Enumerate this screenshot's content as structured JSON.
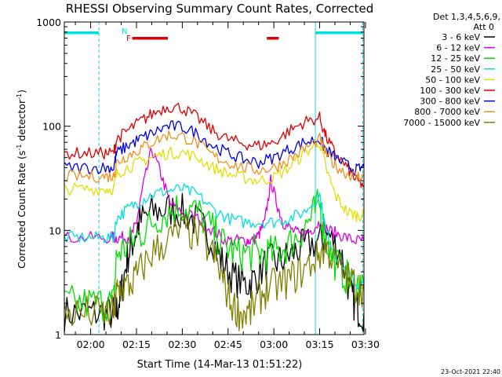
{
  "chart_data": {
    "type": "line",
    "title": "RHESSI Observing Summary Count Rates, Corrected",
    "xlabel": "Start Time (14-Mar-13 01:51:22)",
    "ylabel_main": "Corrected Count Rate (s",
    "ylabel_sup1": "-1",
    "ylabel_mid": " detector",
    "ylabel_sup2": "-1",
    "ylabel_end": ")",
    "yscale": "log",
    "ylim": [
      1,
      1000
    ],
    "xlim_min": [
      111.37,
      209.5
    ],
    "x_unit": "minutes after 00:00 UT, 14-Mar-13",
    "x_ticks": [
      {
        "v": 120,
        "label": "02:00"
      },
      {
        "v": 135,
        "label": "02:15"
      },
      {
        "v": 150,
        "label": "02:30"
      },
      {
        "v": 165,
        "label": "02:45"
      },
      {
        "v": 180,
        "label": "03:00"
      },
      {
        "v": 195,
        "label": "03:15"
      },
      {
        "v": 210,
        "label": "03:30"
      }
    ],
    "y_ticks": [
      {
        "v": 1,
        "label": "1"
      },
      {
        "v": 10,
        "label": "10"
      },
      {
        "v": 100,
        "label": "100"
      },
      {
        "v": 1000,
        "label": "1000"
      }
    ],
    "legend_header": [
      "Det 1,3,4,5,6,9,",
      "Att 0"
    ],
    "legend_placement": "right",
    "series": [
      {
        "name": "3 - 6 keV",
        "color": "#000000",
        "x": [
          111.4,
          118,
          124,
          127.5,
          128.5,
          130,
          132,
          134,
          136,
          140,
          145,
          150,
          155,
          160,
          163,
          167,
          171,
          174,
          178,
          182,
          186,
          190,
          195,
          198,
          202,
          205,
          207,
          209.5
        ],
        "y": [
          1.6,
          1.6,
          1.6,
          1.6,
          1.7,
          2.5,
          5.5,
          8,
          12,
          15,
          16,
          15,
          12,
          8,
          5,
          3.5,
          3,
          3.5,
          5,
          5,
          6,
          7,
          8,
          9,
          6,
          2.5,
          1.8,
          1.6
        ]
      },
      {
        "name": "6 - 12 keV",
        "color": "#e000e0",
        "x": [
          111.4,
          120,
          127,
          128.5,
          131,
          133.5,
          135,
          137,
          140,
          143,
          146,
          150,
          155,
          160,
          164,
          168,
          171,
          173,
          175,
          177,
          179,
          181,
          183,
          186,
          189,
          192,
          195,
          198,
          202,
          206,
          209.5
        ],
        "y": [
          8.5,
          8.5,
          8.5,
          8.5,
          8.5,
          9,
          12,
          25,
          60,
          35,
          18,
          15,
          13,
          10,
          8,
          8,
          8,
          8,
          9,
          12,
          30,
          18,
          12,
          10,
          9,
          10,
          12,
          10,
          9,
          8,
          8
        ]
      },
      {
        "name": "12 - 25 keV",
        "color": "#00e000",
        "x": [
          111.4,
          118,
          124,
          127.5,
          128.5,
          132,
          136,
          140,
          145,
          150,
          155,
          160,
          164,
          168,
          172,
          176,
          180,
          184,
          188,
          192,
          195,
          197,
          200,
          204,
          207,
          209.5
        ],
        "y": [
          2,
          2,
          2,
          2,
          6,
          7,
          9,
          12,
          15,
          17,
          15,
          10,
          7,
          6,
          6,
          6,
          6,
          7,
          9,
          13,
          18,
          8,
          5,
          3.5,
          3,
          3
        ]
      },
      {
        "name": "25 - 50 keV",
        "color": "#00e0e0",
        "x": [
          111.4,
          118,
          124,
          127.5,
          128.5,
          132,
          136,
          140,
          145,
          150,
          155,
          160,
          165,
          170,
          175,
          180,
          185,
          190,
          195,
          197,
          200,
          204,
          207,
          209.5
        ],
        "y": [
          8.5,
          8.5,
          8.5,
          8.5,
          13,
          16,
          19,
          22,
          24,
          25,
          22,
          16,
          13,
          12,
          12,
          12,
          13,
          15,
          22,
          10,
          6,
          4,
          3,
          3
        ]
      },
      {
        "name": "50 - 100 keV",
        "color": "#e0e000",
        "x": [
          111.4,
          118,
          124,
          127.5,
          128.5,
          132,
          136,
          140,
          145,
          150,
          155,
          160,
          165,
          170,
          175,
          180,
          185,
          190,
          195,
          197,
          200,
          204,
          207,
          209.5
        ],
        "y": [
          25,
          25,
          25,
          25,
          35,
          40,
          45,
          50,
          55,
          56,
          50,
          40,
          35,
          32,
          30,
          32,
          40,
          55,
          70,
          40,
          22,
          15,
          14,
          14
        ]
      },
      {
        "name": "100 - 300 keV",
        "color": "#e00000",
        "x": [
          111.4,
          118,
          124,
          127.5,
          128.5,
          132,
          136,
          140,
          145,
          150,
          155,
          160,
          165,
          170,
          175,
          180,
          185,
          190,
          195,
          197,
          200,
          204,
          207,
          209.5
        ],
        "y": [
          55,
          55,
          55,
          55,
          75,
          90,
          110,
          130,
          155,
          150,
          120,
          90,
          75,
          68,
          65,
          70,
          90,
          110,
          120,
          80,
          55,
          40,
          30,
          27
        ]
      },
      {
        "name": "300 - 800 keV",
        "color": "#0000e0",
        "x": [
          111.4,
          118,
          124,
          127.5,
          128.5,
          132,
          136,
          140,
          145,
          150,
          155,
          160,
          165,
          170,
          175,
          180,
          185,
          190,
          195,
          197,
          200,
          204,
          207,
          209.5
        ],
        "y": [
          40,
          40,
          40,
          40,
          55,
          65,
          75,
          85,
          100,
          98,
          85,
          65,
          55,
          48,
          45,
          50,
          60,
          70,
          75,
          60,
          50,
          42,
          38,
          40
        ]
      },
      {
        "name": "800 - 7000 keV",
        "color": "#f09020",
        "x": [
          111.4,
          118,
          124,
          127.5,
          128.5,
          132,
          136,
          140,
          145,
          150,
          155,
          160,
          165,
          170,
          175,
          180,
          185,
          190,
          195,
          197,
          200,
          204,
          207,
          209.5
        ],
        "y": [
          33,
          33,
          33,
          33,
          45,
          52,
          60,
          70,
          82,
          80,
          68,
          52,
          45,
          40,
          38,
          40,
          48,
          60,
          75,
          55,
          42,
          35,
          33,
          33
        ]
      },
      {
        "name": "7000 - 15000 keV",
        "color": "#808000",
        "x": [
          111.4,
          118,
          124,
          127.5,
          128.5,
          130,
          133,
          136,
          140,
          145,
          150,
          155,
          160,
          163,
          166,
          169,
          172,
          175,
          178,
          182,
          186,
          190,
          194,
          197,
          200,
          204,
          207,
          209.5
        ],
        "y": [
          1.6,
          1.6,
          1.6,
          1.6,
          2.5,
          2.8,
          3,
          4,
          6,
          8,
          10,
          9,
          6,
          3.5,
          2,
          1.6,
          1.6,
          2.2,
          2.8,
          3,
          3.5,
          4.2,
          5.5,
          7,
          5,
          3.5,
          3,
          2.7
        ]
      }
    ],
    "markers": [
      {
        "name": "N",
        "color": "#00e0e0"
      },
      {
        "name": "F",
        "color": "#e00000"
      }
    ],
    "bars": [
      {
        "color": "#00e0e0",
        "segments": [
          [
            111.4,
            122.7
          ],
          [
            193.6,
            209.1
          ]
        ]
      },
      {
        "color": "#e00000",
        "segments": [
          [
            133.6,
            145.3
          ],
          [
            177.7,
            181.6
          ]
        ]
      }
    ],
    "vlines": [
      {
        "x": 122.7,
        "color": "#00e0e0",
        "style": "dashed"
      },
      {
        "x": 193.6,
        "color": "#00e0e0",
        "style": "solid"
      },
      {
        "x": 209.1,
        "color": "#00e0e0",
        "style": "dashed"
      }
    ],
    "timestamp": "23-Oct-2021 22:40"
  }
}
